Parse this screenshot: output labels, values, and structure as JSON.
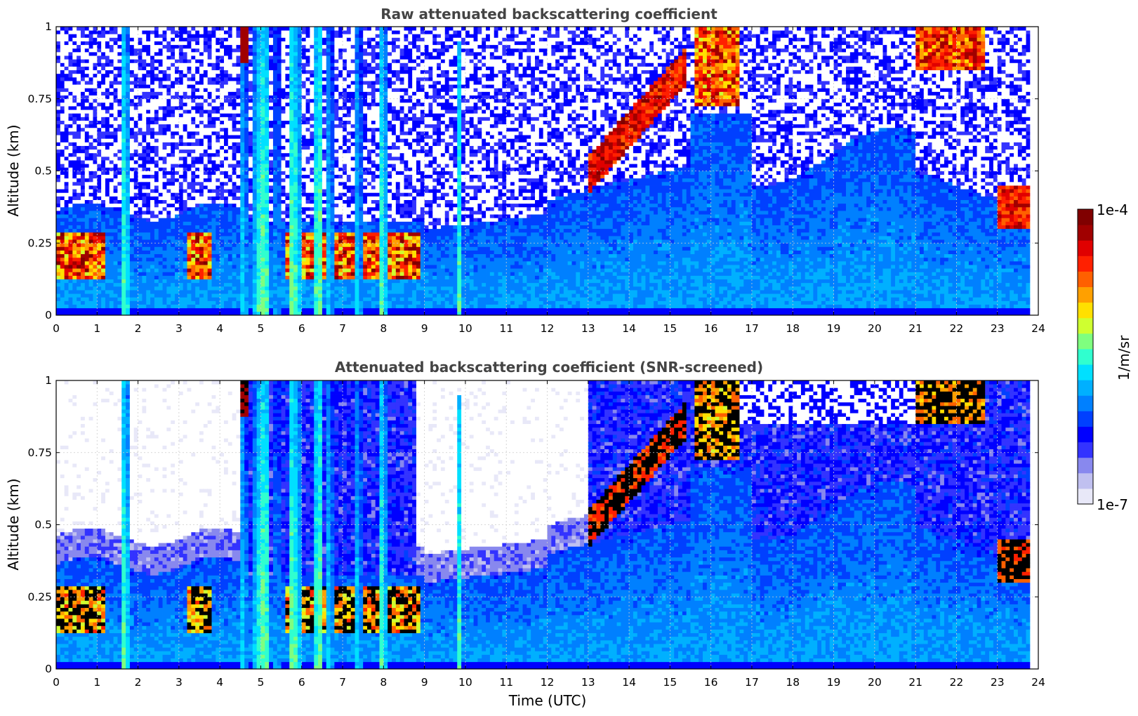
{
  "chart_data": [
    {
      "type": "heatmap",
      "title": "Raw attenuated backscattering coefficient",
      "xlabel": "",
      "ylabel": "Altitude (km)",
      "xlim": [
        0,
        24
      ],
      "ylim": [
        0,
        1
      ],
      "xticks": [
        "0",
        "1",
        "2",
        "3",
        "4",
        "5",
        "6",
        "7",
        "8",
        "9",
        "10",
        "11",
        "12",
        "13",
        "14",
        "15",
        "16",
        "17",
        "18",
        "19",
        "20",
        "21",
        "22",
        "23",
        "24"
      ],
      "yticks": [
        "0",
        "0.25",
        "0.5",
        "0.75",
        "1"
      ],
      "grid": true,
      "colormap": "jet",
      "scale": "log",
      "features": {
        "boundary_layer_top_km": 0.35,
        "aerosol_layer_km": [
          0.12,
          0.3
        ],
        "rising_cloud_layer": {
          "start_time_h": 13.0,
          "start_alt_km": 0.5,
          "end_time_h": 15.4,
          "end_alt_km": 0.88
        },
        "precip_columns_h": [
          4.6,
          5.0,
          5.5,
          6.0,
          6.5,
          7.0,
          7.5,
          8.0,
          9.9
        ]
      }
    },
    {
      "type": "heatmap",
      "title": "Attenuated backscattering coefficient (SNR-screened)",
      "xlabel": "Time (UTC)",
      "ylabel": "Altitude (km)",
      "xlim": [
        0,
        24
      ],
      "ylim": [
        0,
        1
      ],
      "xticks": [
        "0",
        "1",
        "2",
        "3",
        "4",
        "5",
        "6",
        "7",
        "8",
        "9",
        "10",
        "11",
        "12",
        "13",
        "14",
        "15",
        "16",
        "17",
        "18",
        "19",
        "20",
        "21",
        "22",
        "23",
        "24"
      ],
      "yticks": [
        "0",
        "0.25",
        "0.5",
        "0.75",
        "1"
      ],
      "grid": true,
      "colormap": "jet",
      "scale": "log",
      "screened_color": "#ffffff",
      "saturated_color": "#000000"
    }
  ],
  "colorbar": {
    "label": "1/m/sr",
    "max_label": "1e-4",
    "min_label": "1e-7",
    "min": 1e-07,
    "max": 0.0001,
    "colors": [
      "#e8e8f8",
      "#c0c0f0",
      "#8888ee",
      "#3333ff",
      "#0000ff",
      "#0040ff",
      "#0080ff",
      "#00b0ff",
      "#00e0ff",
      "#30ffcf",
      "#7fff7f",
      "#cfff30",
      "#ffe000",
      "#ffa000",
      "#ff6000",
      "#ff2000",
      "#e00000",
      "#a00000",
      "#800000"
    ]
  }
}
